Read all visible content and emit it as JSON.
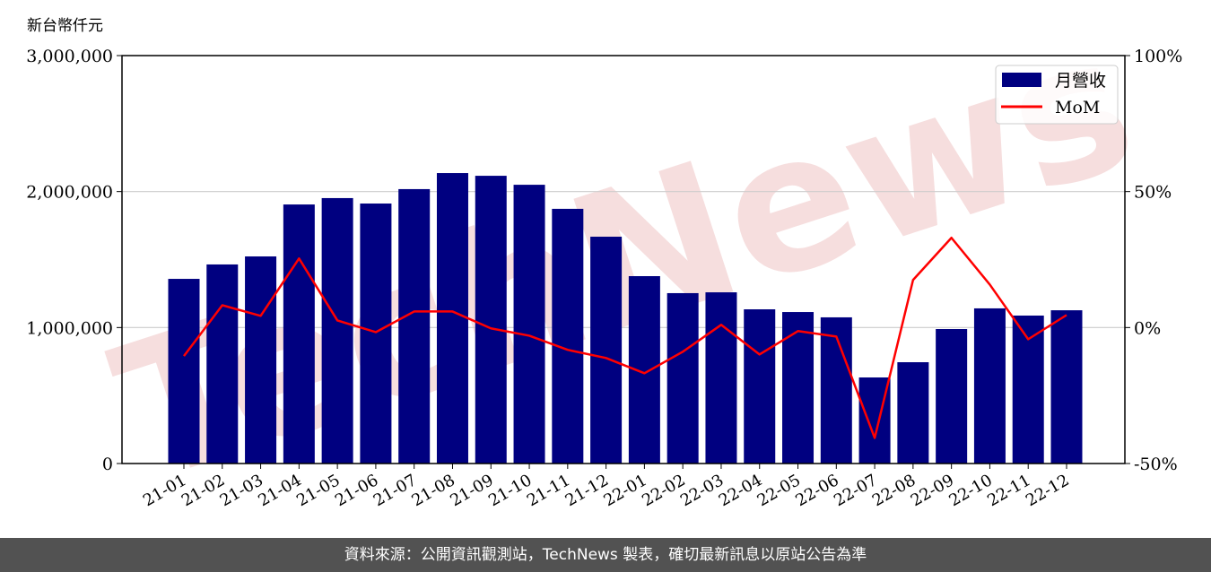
{
  "chart_data": {
    "type": "bar",
    "ylabel": "新台幣仟元",
    "categories": [
      "21-01",
      "21-02",
      "21-03",
      "21-04",
      "21-05",
      "21-06",
      "21-07",
      "21-08",
      "21-09",
      "21-10",
      "21-11",
      "21-12",
      "22-01",
      "22-02",
      "22-03",
      "22-04",
      "22-05",
      "22-06",
      "22-07",
      "22-08",
      "22-09",
      "22-10",
      "22-11",
      "22-12"
    ],
    "series": [
      {
        "name": "月營收",
        "type": "bar",
        "axis": "left",
        "color": "#000080",
        "values": [
          1358000,
          1464000,
          1523000,
          1905000,
          1952000,
          1912000,
          2018000,
          2136000,
          2116000,
          2050000,
          1873000,
          1668000,
          1378000,
          1253000,
          1259000,
          1134000,
          1114000,
          1075000,
          633000,
          745000,
          989000,
          1141000,
          1088000,
          1127000
        ]
      },
      {
        "name": "MoM",
        "type": "line",
        "axis": "right",
        "unit": "%",
        "color": "#ff0000",
        "values": [
          -10.5,
          8.2,
          4.3,
          25.4,
          2.6,
          -1.7,
          5.9,
          5.9,
          -0.3,
          -3.0,
          -8.2,
          -11.2,
          -16.8,
          -8.9,
          1.0,
          -9.9,
          -1.3,
          -3.3,
          -40.6,
          17.5,
          33.0,
          15.8,
          -4.3,
          4.6
        ]
      }
    ],
    "ylim": [
      0,
      3000000
    ],
    "yticks": [
      "0",
      "1,000,000",
      "2,000,000",
      "3,000,000"
    ],
    "y2lim": [
      -50,
      100
    ],
    "y2ticks": [
      "-50%",
      "0%",
      "50%",
      "100%"
    ],
    "grid": "horizontal",
    "legend": "top-right"
  },
  "watermark": "TechNews",
  "footer": "資料來源：公開資訊觀測站，TechNews 製表，確切最新訊息以原站公告為準"
}
